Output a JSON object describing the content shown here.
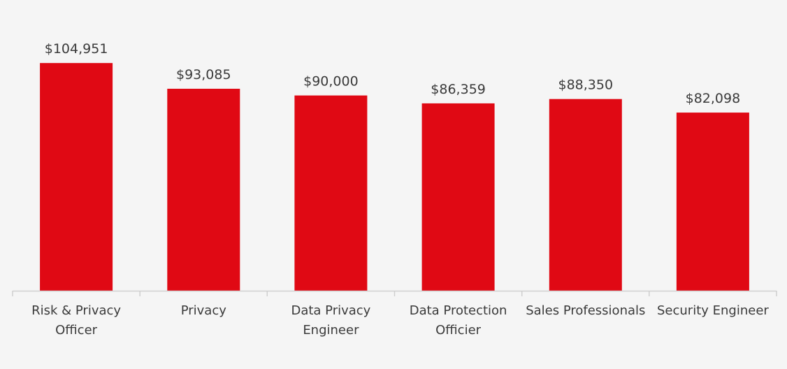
{
  "colors": {
    "background": "#f5f5f5",
    "bar": "#e00914",
    "axis": "#cfcfcf",
    "text": "#3a3a3a"
  },
  "chart_data": {
    "type": "bar",
    "title": "",
    "xlabel": "",
    "ylabel": "",
    "categories": [
      [
        "Risk & Privacy",
        "Officer"
      ],
      [
        "Privacy"
      ],
      [
        "Data Privacy",
        "Engineer"
      ],
      [
        "Data Protection",
        "Officier"
      ],
      [
        "Sales Professionals"
      ],
      [
        "Security Engineer"
      ]
    ],
    "values": [
      104951,
      93085,
      90000,
      86359,
      88350,
      82098
    ],
    "value_labels": [
      "$104,951",
      "$93,085",
      "$90,000",
      "$86,359",
      "$88,350",
      "$82,098"
    ],
    "ylim": [
      0,
      105000
    ],
    "grid": false,
    "legend": "none"
  }
}
